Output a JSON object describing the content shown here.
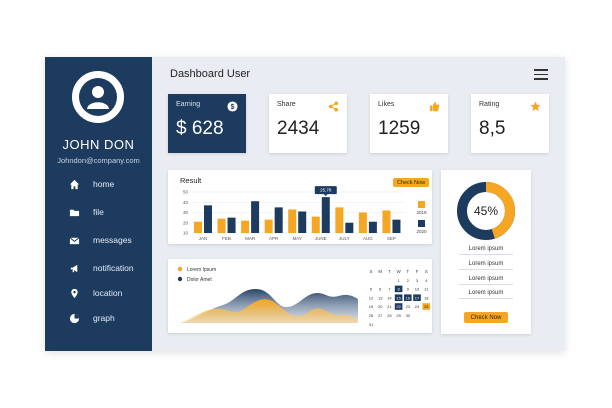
{
  "user": {
    "name": "JOHN DON",
    "email": "Johndon@company.com"
  },
  "nav": [
    {
      "label": "home",
      "icon": "home-icon"
    },
    {
      "label": "file",
      "icon": "folder-icon"
    },
    {
      "label": "messages",
      "icon": "envelope-icon"
    },
    {
      "label": "notification",
      "icon": "megaphone-icon"
    },
    {
      "label": "location",
      "icon": "location-pin-icon"
    },
    {
      "label": "graph",
      "icon": "pie-chart-icon"
    }
  ],
  "header": {
    "title": "Dashboard User"
  },
  "stats": [
    {
      "label": "Earning",
      "value": "$ 628",
      "icon": "dollar-icon"
    },
    {
      "label": "Share",
      "value": "2434",
      "icon": "share-icon"
    },
    {
      "label": "Likes",
      "value": "1259",
      "icon": "thumbs-up-icon"
    },
    {
      "label": "Rating",
      "value": "8,5",
      "icon": "star-icon"
    }
  ],
  "colors": {
    "navy": "#1d3a5f",
    "orange": "#f5a623",
    "background": "#e9ecf2"
  },
  "chart_data": {
    "type": "bar",
    "title": "Result",
    "categories": [
      "JAN",
      "FEB",
      "MAR",
      "APR",
      "MAY",
      "JUNE",
      "JULY",
      "AUG",
      "SEP"
    ],
    "yticks": [
      10,
      20,
      30,
      40,
      50
    ],
    "ylim": [
      10,
      50
    ],
    "series": [
      {
        "name": "2019",
        "color": "#f5a623",
        "values": [
          21,
          24,
          22,
          23,
          33,
          26,
          35,
          30,
          32
        ]
      },
      {
        "name": "2020",
        "color": "#1d3a5f",
        "values": [
          37,
          25,
          41,
          35,
          31,
          45,
          20,
          21,
          23
        ]
      }
    ],
    "tooltip": {
      "category": "JUNE",
      "label": "25,78"
    },
    "check_label": "Check Now"
  },
  "wave_legend": [
    {
      "label": "Lorem Ipsum",
      "color": "#f5a623"
    },
    {
      "label": "Dolor Amet",
      "color": "#1d3a5f"
    }
  ],
  "calendar": {
    "headers": [
      "S",
      "M",
      "T",
      "W",
      "T",
      "F",
      "S"
    ],
    "days": [
      [
        "",
        "",
        "",
        "1",
        "2",
        "3",
        "4"
      ],
      [
        "5",
        "6",
        "7",
        "8",
        "9",
        "10",
        "11"
      ],
      [
        "12",
        "13",
        "14",
        "15",
        "16",
        "17",
        "18"
      ],
      [
        "19",
        "20",
        "21",
        "22",
        "23",
        "24",
        "25"
      ],
      [
        "26",
        "27",
        "28",
        "29",
        "30",
        "",
        ""
      ],
      [
        "31",
        "",
        "",
        "",
        "",
        "",
        ""
      ]
    ],
    "highlight_navy": [
      "8",
      "15",
      "16",
      "17",
      "22"
    ],
    "highlight_orange": [
      "25"
    ]
  },
  "donut": {
    "percent": 45,
    "label": "45%"
  },
  "lorem_items": [
    "Lorem ipsum",
    "Lorem ipsum",
    "Lorem ipsum",
    "Lorem ipsum"
  ],
  "donut_check": "Check Now"
}
